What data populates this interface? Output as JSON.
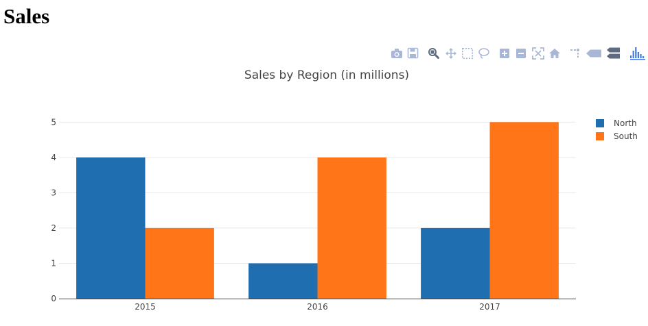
{
  "page": {
    "heading": "Sales"
  },
  "modebar": {
    "icons": [
      "camera-icon",
      "save-icon",
      "zoom-icon",
      "pan-icon",
      "box-select-icon",
      "lasso-select-icon",
      "zoom-in-icon",
      "zoom-out-icon",
      "autoscale-icon",
      "reset-axes-icon",
      "toggle-spike-lines-icon",
      "show-closest-data-icon",
      "compare-data-icon",
      "plotly-logo-icon"
    ],
    "colors": {
      "icon": "#a8b7d5",
      "logo": "#447adb"
    }
  },
  "chart_data": {
    "type": "bar",
    "title": "Sales by Region (in millions)",
    "xlabel": "",
    "ylabel": "",
    "categories": [
      "2015",
      "2016",
      "2017"
    ],
    "series": [
      {
        "name": "North",
        "values": [
          4,
          1,
          2
        ],
        "color": "#1f6fb0"
      },
      {
        "name": "South",
        "values": [
          2,
          4,
          5
        ],
        "color": "#ff7517"
      }
    ],
    "ylim": [
      0,
      5.2
    ],
    "yticks": [
      0,
      1,
      2,
      3,
      4,
      5
    ],
    "grid": true,
    "legend_position": "top-right"
  }
}
